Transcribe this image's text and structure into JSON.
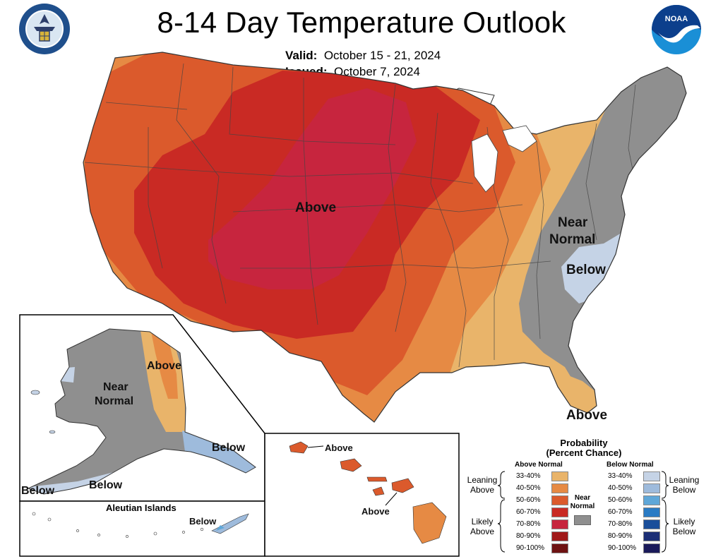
{
  "header": {
    "title": "8-14 Day Temperature Outlook",
    "valid_label": "Valid:",
    "valid_value": "October 15 - 21, 2024",
    "issued_label": "Issued:",
    "issued_value": "October 7, 2024"
  },
  "logos": {
    "commerce": "department-of-commerce-seal",
    "noaa": "noaa-logo"
  },
  "map_labels": {
    "conus_above": "Above",
    "conus_near_normal_1": "Near",
    "conus_near_normal_2": "Normal",
    "conus_below": "Below",
    "florida_above": "Above",
    "alaska_above": "Above",
    "alaska_near_1": "Near",
    "alaska_near_2": "Normal",
    "alaska_below_east": "Below",
    "alaska_below_south": "Below",
    "alaska_below_west": "Below",
    "aleutian_title": "Aleutian Islands",
    "aleutian_below": "Below",
    "hawaii_above_1": "Above",
    "hawaii_above_2": "Above"
  },
  "legend": {
    "title_1": "Probability",
    "title_2": "(Percent Chance)",
    "above_header": "Above Normal",
    "below_header": "Below Normal",
    "near_normal_1": "Near",
    "near_normal_2": "Normal",
    "leaning_above_1": "Leaning",
    "leaning_above_2": "Above",
    "likely_above_1": "Likely",
    "likely_above_2": "Above",
    "leaning_below_1": "Leaning",
    "leaning_below_2": "Below",
    "likely_below_1": "Likely",
    "likely_below_2": "Below",
    "above_rows": [
      {
        "label": "33-40%",
        "color": "#e9b46a"
      },
      {
        "label": "40-50%",
        "color": "#e68a44"
      },
      {
        "label": "50-60%",
        "color": "#db5a2c"
      },
      {
        "label": "60-70%",
        "color": "#c92a24"
      },
      {
        "label": "70-80%",
        "color": "#c7253e"
      },
      {
        "label": "80-90%",
        "color": "#a01818"
      },
      {
        "label": "90-100%",
        "color": "#6e1212"
      }
    ],
    "below_rows": [
      {
        "label": "33-40%",
        "color": "#c5d3e6"
      },
      {
        "label": "40-50%",
        "color": "#9ebbdc"
      },
      {
        "label": "50-60%",
        "color": "#5fa7d8"
      },
      {
        "label": "60-70%",
        "color": "#2a7bc4"
      },
      {
        "label": "70-80%",
        "color": "#1a4e9a"
      },
      {
        "label": "80-90%",
        "color": "#1b2e76"
      },
      {
        "label": "90-100%",
        "color": "#1a1a5a"
      }
    ],
    "near_normal_color": "#8f8f8f"
  }
}
